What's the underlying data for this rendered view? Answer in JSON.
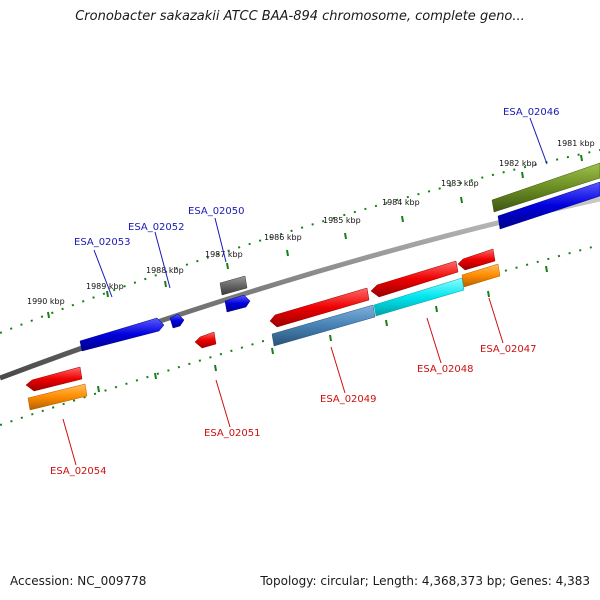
{
  "header": {
    "title": "Cronobacter sakazakii ATCC BAA-894 chromosome, complete geno..."
  },
  "footer": {
    "accession": "Accession: NC_009778",
    "summary": "Topology: circular; Length: 4,368,373 bp; Genes: 4,383"
  },
  "scale_labels": [
    "1990 kbp",
    "1989 kbp",
    "1988 kbp",
    "1987 kbp",
    "1986 kbp",
    "1985 kbp",
    "1984 kbp",
    "1983 kbp",
    "1982 kbp",
    "1981 kbp"
  ],
  "genes": [
    {
      "id": "ESA_02046",
      "color": "#1a1ab4"
    },
    {
      "id": "ESA_02047",
      "color": "#cc1111"
    },
    {
      "id": "ESA_02048",
      "color": "#cc1111"
    },
    {
      "id": "ESA_02049",
      "color": "#cc1111"
    },
    {
      "id": "ESA_02050",
      "color": "#1a1ab4"
    },
    {
      "id": "ESA_02051",
      "color": "#cc1111"
    },
    {
      "id": "ESA_02052",
      "color": "#1a1ab4"
    },
    {
      "id": "ESA_02053",
      "color": "#1a1ab4"
    },
    {
      "id": "ESA_02054",
      "color": "#cc1111"
    }
  ],
  "colors": {
    "backbone": "#7f7f7f",
    "ticks": "#1a7f1a",
    "cds_forward": "#0000dd",
    "cds_reverse": "#ee0000",
    "feature_olive": "#6b8e23",
    "feature_orange": "#ff8c00",
    "feature_cyan": "#00e5ee",
    "feature_steel": "#4682b4",
    "feature_gray": "#666666"
  }
}
